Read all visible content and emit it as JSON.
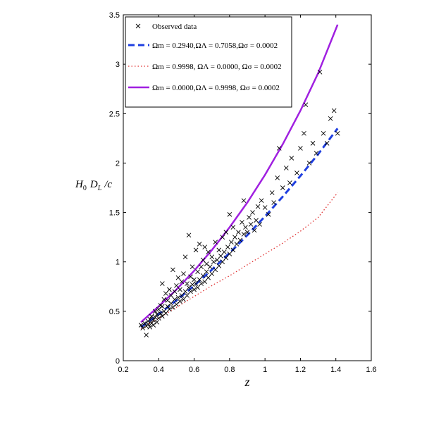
{
  "chart_data": {
    "type": "scatter",
    "xlabel": "z",
    "ylabel": "H0 DL / c",
    "xlim": [
      0.2,
      1.6
    ],
    "ylim": [
      0,
      3.5
    ],
    "xticks": [
      "0.2",
      "0.4",
      "0.6",
      "0.8",
      "1",
      "1.2",
      "1.4",
      "1.6"
    ],
    "yticks": [
      "0",
      "0.5",
      "1",
      "1.5",
      "2",
      "2.5",
      "3",
      "3.5"
    ],
    "grid": false,
    "legend_position": "top-left",
    "legend": [
      "Observed data",
      "Ωm = 0.2940,ΩΛ = 0.7058,Ωσ = 0.0002",
      "Ωm = 0.9998, ΩΛ = 0.0000, Ωσ = 0.0002",
      "Ωm = 0.0000,ΩΛ = 0.9998, Ωσ = 0.0002"
    ],
    "series": [
      {
        "name": "Ωm = 0.2940,ΩΛ = 0.7058,Ωσ = 0.0002",
        "style": "dashed",
        "color": "#1f3fe0",
        "x": [
          0.3,
          0.4,
          0.5,
          0.6,
          0.7,
          0.8,
          0.9,
          1.0,
          1.1,
          1.2,
          1.3,
          1.41
        ],
        "y": [
          0.34,
          0.47,
          0.61,
          0.76,
          0.92,
          1.09,
          1.27,
          1.46,
          1.66,
          1.87,
          2.09,
          2.35
        ]
      },
      {
        "name": "Ωm = 0.9998, ΩΛ = 0.0000, Ωσ = 0.0002",
        "style": "dotted",
        "color": "#e03030",
        "x": [
          0.3,
          0.4,
          0.5,
          0.6,
          0.7,
          0.8,
          0.9,
          1.0,
          1.1,
          1.2,
          1.3,
          1.41
        ],
        "y": [
          0.32,
          0.43,
          0.54,
          0.65,
          0.76,
          0.86,
          0.97,
          1.08,
          1.19,
          1.31,
          1.45,
          1.7
        ]
      },
      {
        "name": "Ωm = 0.0000,ΩΛ = 0.9998, Ωσ = 0.0002",
        "style": "solid",
        "color": "#a020e0",
        "x": [
          0.3,
          0.4,
          0.5,
          0.6,
          0.7,
          0.8,
          0.9,
          1.0,
          1.1,
          1.2,
          1.3,
          1.41
        ],
        "y": [
          0.39,
          0.55,
          0.72,
          0.91,
          1.12,
          1.35,
          1.6,
          1.88,
          2.19,
          2.53,
          2.91,
          3.4
        ]
      }
    ],
    "points": [
      [
        0.3,
        0.36
      ],
      [
        0.31,
        0.33
      ],
      [
        0.32,
        0.38
      ],
      [
        0.33,
        0.35
      ],
      [
        0.33,
        0.26
      ],
      [
        0.34,
        0.4
      ],
      [
        0.34,
        0.37
      ],
      [
        0.35,
        0.34
      ],
      [
        0.35,
        0.42
      ],
      [
        0.36,
        0.38
      ],
      [
        0.36,
        0.45
      ],
      [
        0.37,
        0.36
      ],
      [
        0.37,
        0.41
      ],
      [
        0.38,
        0.44
      ],
      [
        0.38,
        0.5
      ],
      [
        0.39,
        0.39
      ],
      [
        0.39,
        0.47
      ],
      [
        0.4,
        0.43
      ],
      [
        0.4,
        0.52
      ],
      [
        0.41,
        0.48
      ],
      [
        0.41,
        0.56
      ],
      [
        0.42,
        0.45
      ],
      [
        0.42,
        0.55
      ],
      [
        0.42,
        0.78
      ],
      [
        0.43,
        0.5
      ],
      [
        0.43,
        0.62
      ],
      [
        0.44,
        0.48
      ],
      [
        0.44,
        0.68
      ],
      [
        0.45,
        0.55
      ],
      [
        0.45,
        0.61
      ],
      [
        0.46,
        0.52
      ],
      [
        0.46,
        0.72
      ],
      [
        0.47,
        0.58
      ],
      [
        0.47,
        0.66
      ],
      [
        0.48,
        0.54
      ],
      [
        0.48,
        0.92
      ],
      [
        0.49,
        0.62
      ],
      [
        0.49,
        0.7
      ],
      [
        0.5,
        0.57
      ],
      [
        0.5,
        0.76
      ],
      [
        0.51,
        0.64
      ],
      [
        0.51,
        0.84
      ],
      [
        0.52,
        0.6
      ],
      [
        0.52,
        0.72
      ],
      [
        0.53,
        0.66
      ],
      [
        0.53,
        0.8
      ],
      [
        0.54,
        0.62
      ],
      [
        0.54,
        0.88
      ],
      [
        0.55,
        0.7
      ],
      [
        0.55,
        1.05
      ],
      [
        0.56,
        0.66
      ],
      [
        0.56,
        0.78
      ],
      [
        0.57,
        0.74
      ],
      [
        0.57,
        1.27
      ],
      [
        0.58,
        0.7
      ],
      [
        0.58,
        0.85
      ],
      [
        0.59,
        0.77
      ],
      [
        0.59,
        0.95
      ],
      [
        0.6,
        0.72
      ],
      [
        0.6,
        0.82
      ],
      [
        0.61,
        0.78
      ],
      [
        0.61,
        1.12
      ],
      [
        0.62,
        0.74
      ],
      [
        0.62,
        0.9
      ],
      [
        0.63,
        0.82
      ],
      [
        0.63,
        1.18
      ],
      [
        0.64,
        0.78
      ],
      [
        0.64,
        0.95
      ],
      [
        0.65,
        0.86
      ],
      [
        0.65,
        1.02
      ],
      [
        0.66,
        0.8
      ],
      [
        0.66,
        1.15
      ],
      [
        0.67,
        0.9
      ],
      [
        0.67,
        0.98
      ],
      [
        0.68,
        0.84
      ],
      [
        0.68,
        1.1
      ],
      [
        0.69,
        0.95
      ],
      [
        0.7,
        0.88
      ],
      [
        0.7,
        1.05
      ],
      [
        0.71,
        1.0
      ],
      [
        0.72,
        0.92
      ],
      [
        0.72,
        1.2
      ],
      [
        0.73,
        1.02
      ],
      [
        0.74,
        0.96
      ],
      [
        0.74,
        1.12
      ],
      [
        0.75,
        1.06
      ],
      [
        0.76,
        1.0
      ],
      [
        0.76,
        1.25
      ],
      [
        0.77,
        1.1
      ],
      [
        0.78,
        1.04
      ],
      [
        0.78,
        1.3
      ],
      [
        0.79,
        1.15
      ],
      [
        0.8,
        1.08
      ],
      [
        0.8,
        1.48
      ],
      [
        0.81,
        1.2
      ],
      [
        0.82,
        1.12
      ],
      [
        0.82,
        1.35
      ],
      [
        0.83,
        1.25
      ],
      [
        0.84,
        1.18
      ],
      [
        0.85,
        1.3
      ],
      [
        0.86,
        1.22
      ],
      [
        0.87,
        1.4
      ],
      [
        0.88,
        1.28
      ],
      [
        0.88,
        1.62
      ],
      [
        0.89,
        1.35
      ],
      [
        0.9,
        1.3
      ],
      [
        0.91,
        1.45
      ],
      [
        0.92,
        1.38
      ],
      [
        0.93,
        1.5
      ],
      [
        0.94,
        1.32
      ],
      [
        0.95,
        1.42
      ],
      [
        0.96,
        1.56
      ],
      [
        0.97,
        1.38
      ],
      [
        0.98,
        1.62
      ],
      [
        1.0,
        1.55
      ],
      [
        1.02,
        1.48
      ],
      [
        1.04,
        1.7
      ],
      [
        1.05,
        1.6
      ],
      [
        1.07,
        1.85
      ],
      [
        1.08,
        2.15
      ],
      [
        1.1,
        1.75
      ],
      [
        1.12,
        1.95
      ],
      [
        1.14,
        1.8
      ],
      [
        1.15,
        2.05
      ],
      [
        1.18,
        1.9
      ],
      [
        1.2,
        2.15
      ],
      [
        1.22,
        2.3
      ],
      [
        1.23,
        2.59
      ],
      [
        1.25,
        2.0
      ],
      [
        1.27,
        2.2
      ],
      [
        1.29,
        2.1
      ],
      [
        1.31,
        2.92
      ],
      [
        1.33,
        2.3
      ],
      [
        1.35,
        2.2
      ],
      [
        1.37,
        2.45
      ],
      [
        1.39,
        2.53
      ],
      [
        1.41,
        2.3
      ]
    ]
  }
}
